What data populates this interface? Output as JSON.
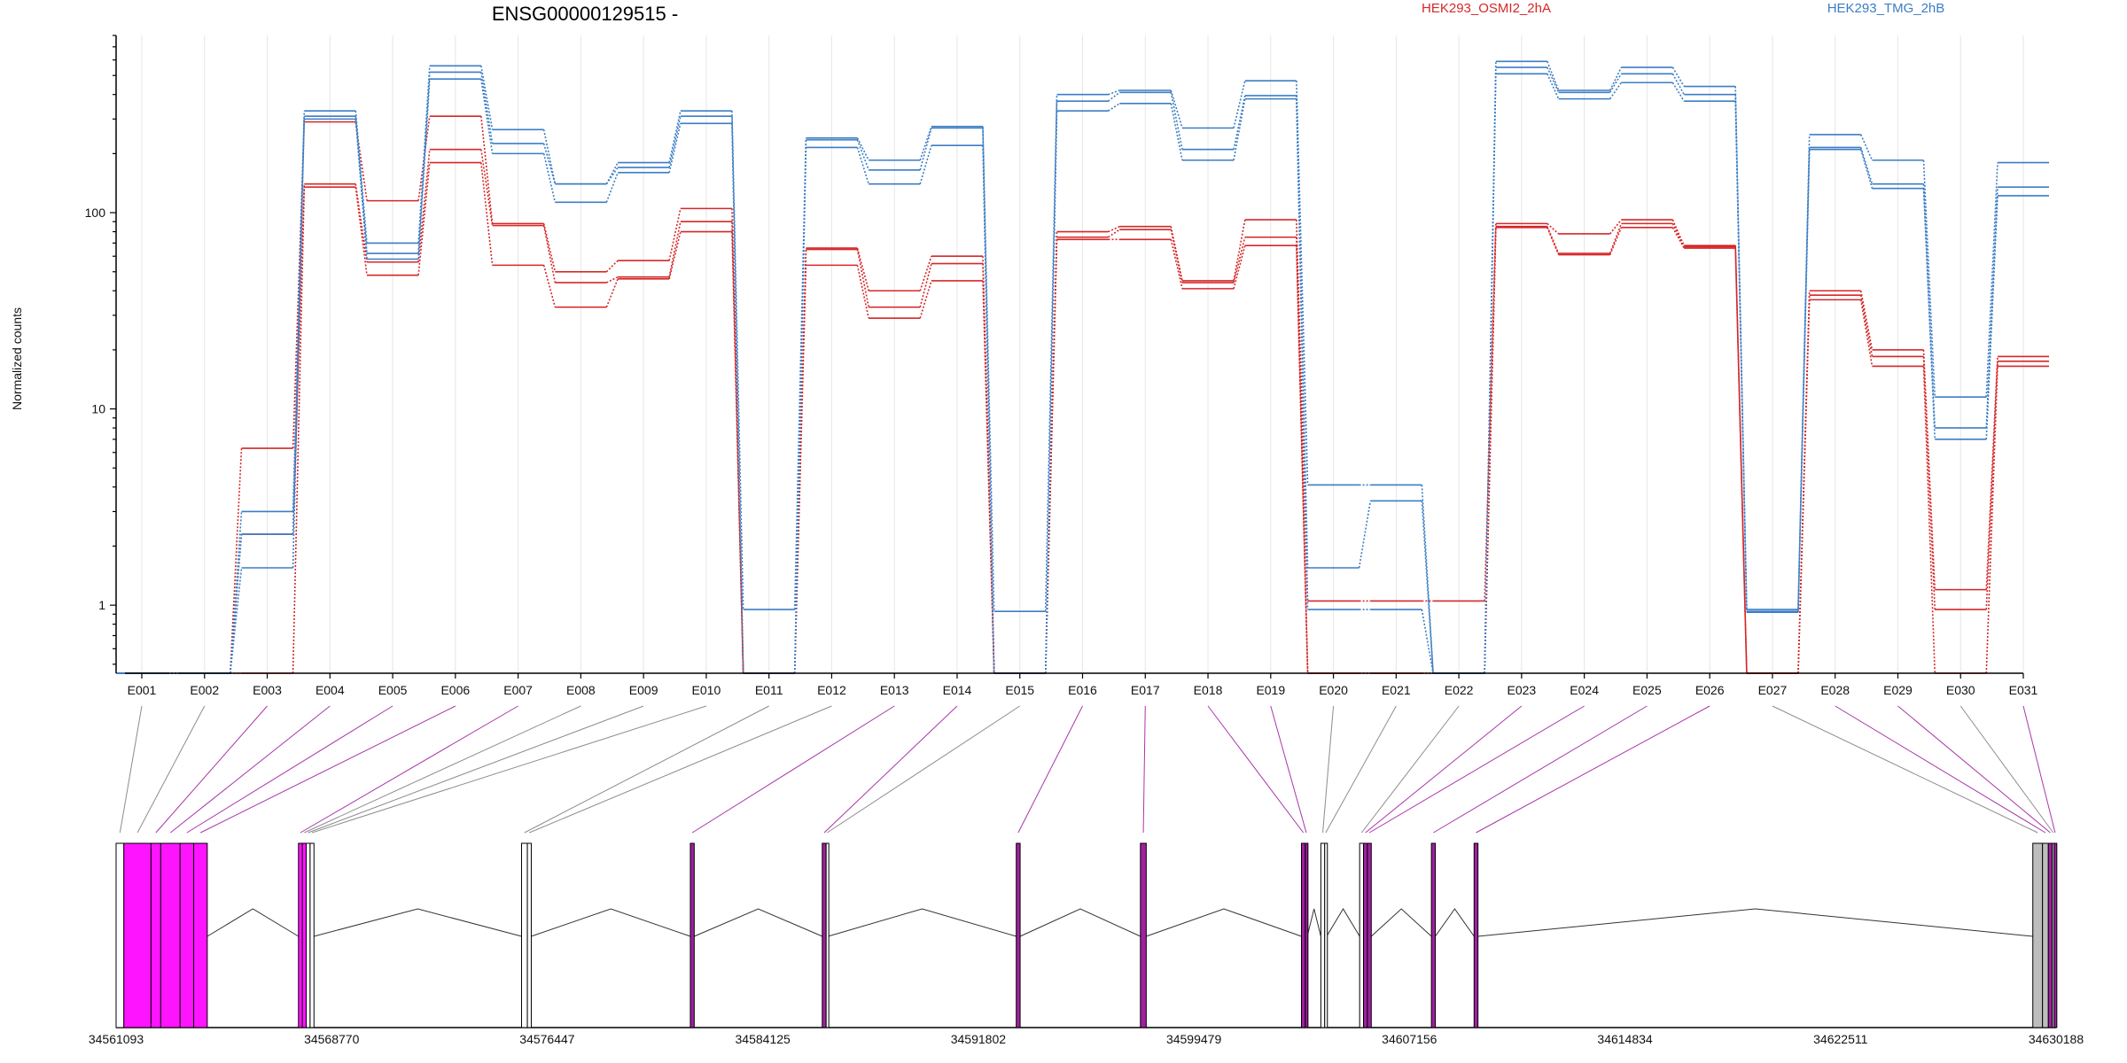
{
  "chart_data": {
    "type": "line",
    "title": "ENSG00000129515 -",
    "ylabel": "Normalized counts",
    "yscale": "log",
    "ylim": [
      0.45,
      800
    ],
    "yticks": [
      1,
      10,
      100
    ],
    "ytick_labels": [
      "1",
      "10",
      "100"
    ],
    "categories": [
      "E001",
      "E002",
      "E003",
      "E004",
      "E005",
      "E006",
      "E007",
      "E008",
      "E009",
      "E010",
      "E011",
      "E012",
      "E013",
      "E014",
      "E015",
      "E016",
      "E017",
      "E018",
      "E019",
      "E020",
      "E021",
      "E022",
      "E023",
      "E024",
      "E025",
      "E026",
      "E027",
      "E028",
      "E029",
      "E030",
      "E031"
    ],
    "legend": [
      {
        "name": "HEK293_OSMI2_2hA",
        "color": "#d62728"
      },
      {
        "name": "HEK293_TMG_2hB",
        "color": "#3b7dc4"
      }
    ],
    "series": [
      {
        "name": "HEK293_OSMI2_2hA",
        "color": "#d62728",
        "values": [
          0.45,
          0.45,
          6.3,
          290,
          115,
          310,
          88,
          50,
          57,
          105,
          0.45,
          66,
          40,
          60,
          0.45,
          80,
          85,
          45,
          92,
          1.05,
          1.05,
          1.05,
          88,
          78,
          92,
          68,
          0.45,
          40,
          20,
          1.2,
          18.5
        ]
      },
      {
        "name": "HEK293_OSMI2_2hA",
        "color": "#d62728",
        "values": [
          0.45,
          0.45,
          2.3,
          140,
          56,
          210,
          86,
          44,
          47,
          90,
          0.45,
          65,
          33,
          55,
          0.45,
          75,
          82,
          44,
          75,
          0.45,
          0.45,
          0.45,
          85,
          62,
          88,
          67,
          0.45,
          38,
          18.5,
          0.95,
          17.5
        ]
      },
      {
        "name": "HEK293_OSMI2_2hA",
        "color": "#d62728",
        "values": [
          0.45,
          0.45,
          0.45,
          135,
          48,
          180,
          54,
          33,
          46,
          80,
          0.45,
          54,
          29,
          45,
          0.45,
          73,
          73,
          41,
          68,
          0.45,
          0.45,
          0.45,
          84,
          61,
          84,
          66,
          0.45,
          36,
          16.5,
          0.45,
          16.5
        ]
      },
      {
        "name": "HEK293_TMG_2hB",
        "color": "#3b7dc4",
        "values": [
          0.45,
          0.45,
          3.0,
          330,
          70,
          560,
          265,
          140,
          180,
          330,
          0.95,
          240,
          185,
          275,
          0.93,
          400,
          420,
          270,
          470,
          4.1,
          4.1,
          0.45,
          590,
          420,
          550,
          440,
          0.95,
          250,
          185,
          11.5,
          180
        ]
      },
      {
        "name": "HEK293_TMG_2hB",
        "color": "#3b7dc4",
        "values": [
          0.45,
          0.45,
          2.3,
          310,
          62,
          520,
          225,
          140,
          170,
          310,
          0.45,
          235,
          165,
          270,
          0.45,
          370,
          410,
          210,
          395,
          1.55,
          3.4,
          0.45,
          550,
          410,
          510,
          400,
          0.93,
          215,
          140,
          8.0,
          135
        ]
      },
      {
        "name": "HEK293_TMG_2hB",
        "color": "#3b7dc4",
        "values": [
          0.45,
          0.45,
          1.55,
          300,
          58,
          480,
          200,
          113,
          160,
          285,
          0.45,
          215,
          140,
          220,
          0.45,
          330,
          360,
          185,
          380,
          0.95,
          0.95,
          0.45,
          510,
          380,
          460,
          370,
          0.92,
          210,
          133,
          7.0,
          122
        ]
      }
    ],
    "gene_coordinates": [
      "34561093",
      "34568770",
      "34576447",
      "34584125",
      "34591802",
      "34599479",
      "34607156",
      "34614834",
      "34622511",
      "34630188"
    ],
    "exons": [
      {
        "id": "E001",
        "start": 0.0,
        "end": 0.004,
        "color": "#ffffff",
        "link": "#808080"
      },
      {
        "id": "E002",
        "start": 0.004,
        "end": 0.018,
        "color": "#ff14ff",
        "link": "#808080"
      },
      {
        "id": "E003",
        "start": 0.018,
        "end": 0.023,
        "color": "#ff14ff",
        "link": "#a020a0"
      },
      {
        "id": "E004",
        "start": 0.023,
        "end": 0.033,
        "color": "#ff14ff",
        "link": "#a020a0"
      },
      {
        "id": "E005",
        "start": 0.033,
        "end": 0.04,
        "color": "#ff14ff",
        "link": "#a020a0"
      },
      {
        "id": "E006",
        "start": 0.04,
        "end": 0.047,
        "color": "#ff14ff",
        "link": "#a020a0"
      },
      {
        "id": "E007",
        "start": 0.094,
        "end": 0.096,
        "color": "#ff14ff",
        "link": "#a020a0"
      },
      {
        "id": "E008",
        "start": 0.096,
        "end": 0.098,
        "color": "#ff14ff",
        "link": "#808080"
      },
      {
        "id": "E009",
        "start": 0.098,
        "end": 0.1,
        "color": "#ffffff",
        "link": "#808080"
      },
      {
        "id": "E010",
        "start": 0.1,
        "end": 0.102,
        "color": "#ffffff",
        "link": "#808080"
      },
      {
        "id": "E011",
        "start": 0.209,
        "end": 0.212,
        "color": "#ffffff",
        "link": "#808080"
      },
      {
        "id": "E012",
        "start": 0.212,
        "end": 0.214,
        "color": "#ffffff",
        "link": "#808080"
      },
      {
        "id": "E013",
        "start": 0.296,
        "end": 0.298,
        "color": "#a020a0",
        "link": "#a020a0"
      },
      {
        "id": "E014",
        "start": 0.364,
        "end": 0.366,
        "color": "#a020a0",
        "link": "#a020a0"
      },
      {
        "id": "E015",
        "start": 0.366,
        "end": 0.367,
        "color": "#ffffff",
        "link": "#808080"
      },
      {
        "id": "E016",
        "start": 0.464,
        "end": 0.466,
        "color": "#a020a0",
        "link": "#a020a0"
      },
      {
        "id": "E017",
        "start": 0.528,
        "end": 0.531,
        "color": "#a020a0",
        "link": "#a020a0"
      },
      {
        "id": "E018",
        "start": 0.611,
        "end": 0.613,
        "color": "#a020a0",
        "link": "#a020a0"
      },
      {
        "id": "E019",
        "start": 0.613,
        "end": 0.614,
        "color": "#a020a0",
        "link": "#a020a0"
      },
      {
        "id": "E020",
        "start": 0.621,
        "end": 0.623,
        "color": "#ffffff",
        "link": "#808080"
      },
      {
        "id": "E021",
        "start": 0.623,
        "end": 0.624,
        "color": "#ffffff",
        "link": "#808080"
      },
      {
        "id": "E022",
        "start": 0.641,
        "end": 0.643,
        "color": "#ffffff",
        "link": "#808080"
      },
      {
        "id": "E023",
        "start": 0.643,
        "end": 0.645,
        "color": "#a020a0",
        "link": "#a020a0"
      },
      {
        "id": "E024",
        "start": 0.645,
        "end": 0.647,
        "color": "#a020a0",
        "link": "#a020a0"
      },
      {
        "id": "E025",
        "start": 0.678,
        "end": 0.68,
        "color": "#a020a0",
        "link": "#a020a0"
      },
      {
        "id": "E026",
        "start": 0.7,
        "end": 0.702,
        "color": "#a020a0",
        "link": "#a020a0"
      },
      {
        "id": "E027",
        "start": 0.988,
        "end": 0.993,
        "color": "#bdbdbd",
        "link": "#808080"
      },
      {
        "id": "E028",
        "start": 0.993,
        "end": 0.996,
        "color": "#bdbdbd",
        "link": "#a020a0"
      },
      {
        "id": "E029",
        "start": 0.996,
        "end": 0.998,
        "color": "#a020a0",
        "link": "#a020a0"
      },
      {
        "id": "E030",
        "start": 0.998,
        "end": 0.999,
        "color": "#bdbdbd",
        "link": "#808080"
      },
      {
        "id": "E031",
        "start": 0.999,
        "end": 1.0,
        "color": "#a020a0",
        "link": "#a020a0"
      }
    ]
  }
}
